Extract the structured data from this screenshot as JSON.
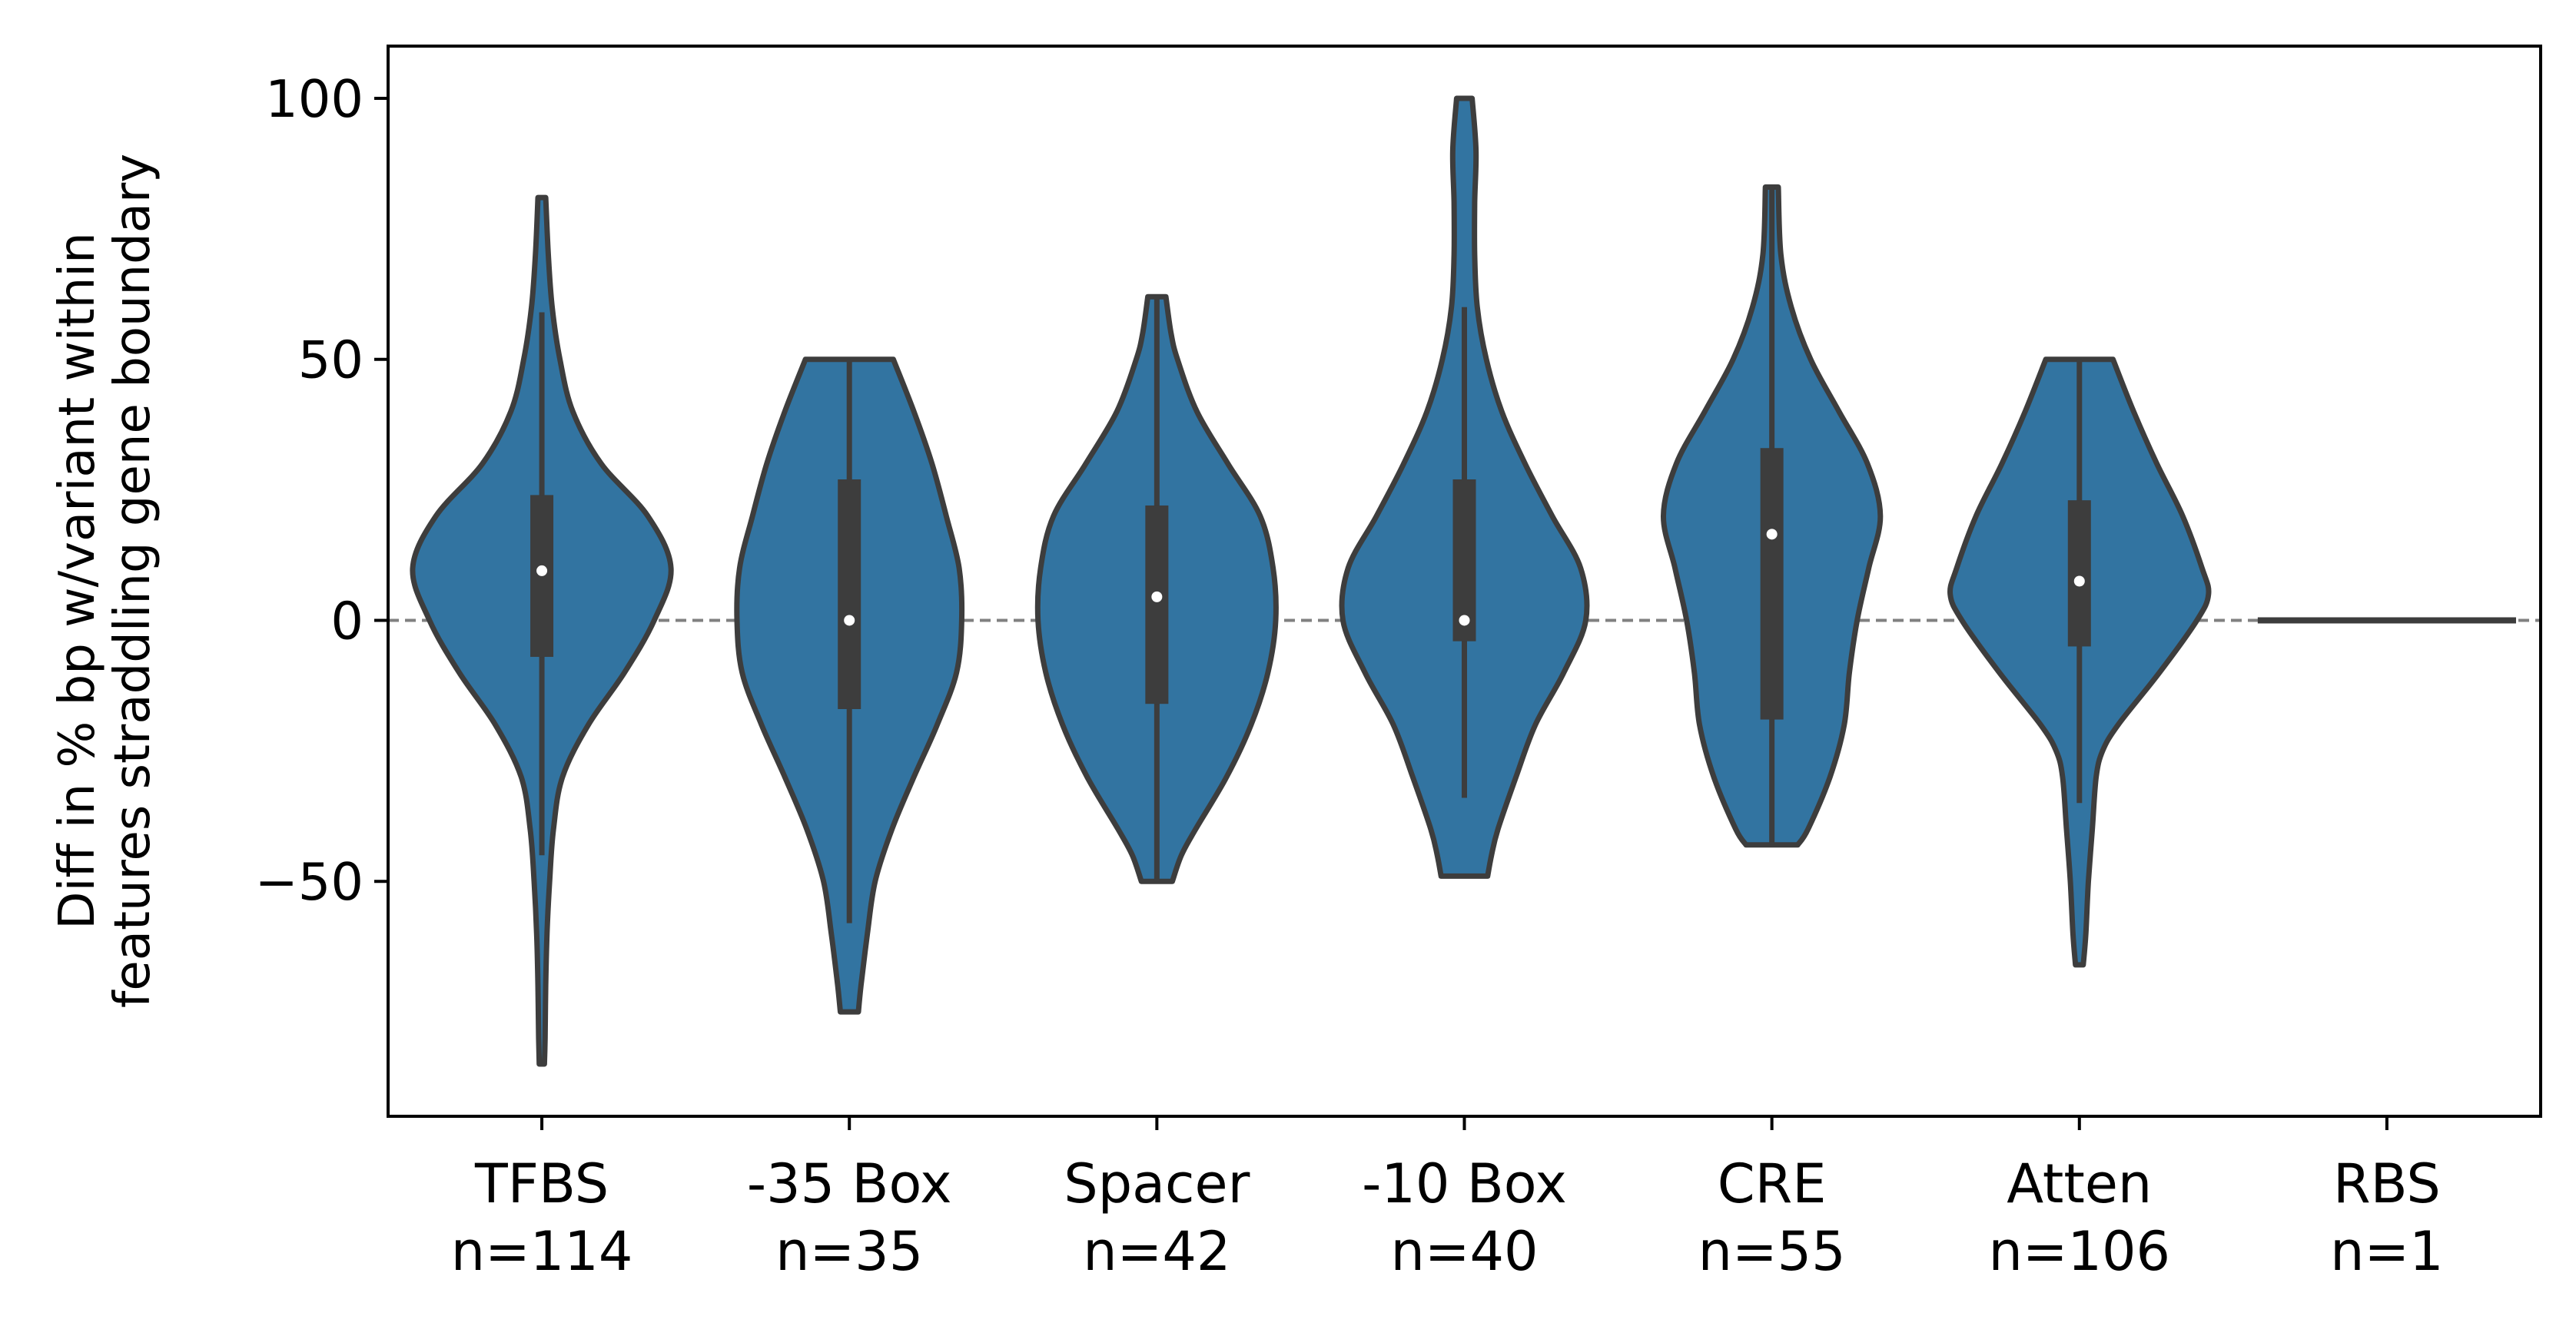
{
  "chart_data": {
    "type": "violin",
    "ylabel": [
      "Diff in % bp w/variant within",
      "features straddling gene boundary"
    ],
    "ylim": [
      -95,
      110
    ],
    "yticks": [
      -50,
      0,
      50,
      100
    ],
    "ytick_labels": [
      "−50",
      "0",
      "50",
      "100"
    ],
    "reference_line": {
      "y": 0,
      "style": "dashed",
      "color": "#808080"
    },
    "colors": {
      "violin_fill": "#3274a1",
      "outline": "#3d3d3d",
      "median_dot": "#ffffff"
    },
    "categories": [
      {
        "name": "TFBS",
        "n_label": "n=114",
        "min": -85,
        "max": 81,
        "q1": -7,
        "q3": 24,
        "median": 9.5,
        "whisker_low": -45,
        "whisker_high": 59,
        "density": [
          [
            -85,
            0.02
          ],
          [
            -80,
            0.025
          ],
          [
            -70,
            0.03
          ],
          [
            -60,
            0.04
          ],
          [
            -50,
            0.06
          ],
          [
            -40,
            0.09
          ],
          [
            -30,
            0.16
          ],
          [
            -20,
            0.36
          ],
          [
            -10,
            0.64
          ],
          [
            0,
            0.87
          ],
          [
            10,
            1.0
          ],
          [
            20,
            0.82
          ],
          [
            30,
            0.46
          ],
          [
            40,
            0.24
          ],
          [
            50,
            0.14
          ],
          [
            60,
            0.08
          ],
          [
            70,
            0.05
          ],
          [
            81,
            0.03
          ]
        ]
      },
      {
        "name": "-35 Box",
        "n_label": "n=35",
        "min": -75,
        "max": 50,
        "q1": -17,
        "q3": 27,
        "median": 0,
        "whisker_low": -58,
        "whisker_high": 50,
        "density": [
          [
            -75,
            0.07
          ],
          [
            -70,
            0.09
          ],
          [
            -60,
            0.14
          ],
          [
            -50,
            0.2
          ],
          [
            -40,
            0.33
          ],
          [
            -30,
            0.5
          ],
          [
            -20,
            0.68
          ],
          [
            -10,
            0.83
          ],
          [
            0,
            0.87
          ],
          [
            10,
            0.85
          ],
          [
            20,
            0.75
          ],
          [
            30,
            0.64
          ],
          [
            40,
            0.5
          ],
          [
            50,
            0.34
          ]
        ]
      },
      {
        "name": "Spacer",
        "n_label": "n=42",
        "min": -50,
        "max": 62,
        "q1": -16,
        "q3": 22,
        "median": 4.5,
        "whisker_low": -50,
        "whisker_high": 62,
        "density": [
          [
            -50,
            0.12
          ],
          [
            -45,
            0.19
          ],
          [
            -40,
            0.3
          ],
          [
            -30,
            0.54
          ],
          [
            -20,
            0.73
          ],
          [
            -10,
            0.86
          ],
          [
            0,
            0.92
          ],
          [
            10,
            0.9
          ],
          [
            20,
            0.8
          ],
          [
            30,
            0.55
          ],
          [
            40,
            0.31
          ],
          [
            50,
            0.16
          ],
          [
            55,
            0.11
          ],
          [
            62,
            0.07
          ]
        ]
      },
      {
        "name": "-10 Box",
        "n_label": "n=40",
        "min": -49,
        "max": 100,
        "q1": -4,
        "q3": 27,
        "median": 0,
        "whisker_low": -34,
        "whisker_high": 60,
        "density": [
          [
            -49,
            0.18
          ],
          [
            -45,
            0.21
          ],
          [
            -40,
            0.26
          ],
          [
            -30,
            0.4
          ],
          [
            -20,
            0.55
          ],
          [
            -10,
            0.77
          ],
          [
            0,
            0.94
          ],
          [
            10,
            0.9
          ],
          [
            20,
            0.68
          ],
          [
            30,
            0.47
          ],
          [
            40,
            0.29
          ],
          [
            50,
            0.17
          ],
          [
            60,
            0.1
          ],
          [
            70,
            0.08
          ],
          [
            80,
            0.08
          ],
          [
            90,
            0.09
          ],
          [
            100,
            0.06
          ]
        ]
      },
      {
        "name": "CRE",
        "n_label": "n=55",
        "min": -43,
        "max": 83,
        "q1": -19,
        "q3": 33,
        "median": 16.5,
        "whisker_low": -43,
        "whisker_high": 83,
        "density": [
          [
            -43,
            0.2
          ],
          [
            -40,
            0.28
          ],
          [
            -30,
            0.45
          ],
          [
            -20,
            0.56
          ],
          [
            -10,
            0.6
          ],
          [
            0,
            0.66
          ],
          [
            10,
            0.75
          ],
          [
            20,
            0.84
          ],
          [
            30,
            0.74
          ],
          [
            40,
            0.52
          ],
          [
            50,
            0.3
          ],
          [
            60,
            0.15
          ],
          [
            70,
            0.07
          ],
          [
            83,
            0.05
          ]
        ]
      },
      {
        "name": "Atten",
        "n_label": "n=106",
        "min": -66,
        "max": 50,
        "q1": -5,
        "q3": 23,
        "median": 7.5,
        "whisker_low": -35,
        "whisker_high": 50,
        "density": [
          [
            -66,
            0.03
          ],
          [
            -60,
            0.05
          ],
          [
            -50,
            0.07
          ],
          [
            -40,
            0.1
          ],
          [
            -30,
            0.13
          ],
          [
            -25,
            0.18
          ],
          [
            -20,
            0.3
          ],
          [
            -10,
            0.62
          ],
          [
            0,
            0.91
          ],
          [
            5,
            1.0
          ],
          [
            10,
            0.95
          ],
          [
            20,
            0.8
          ],
          [
            30,
            0.6
          ],
          [
            40,
            0.42
          ],
          [
            50,
            0.26
          ]
        ]
      },
      {
        "name": "RBS",
        "n_label": "n=1",
        "min": 0,
        "max": 0,
        "q1": 0,
        "q3": 0,
        "median": 0,
        "whisker_low": 0,
        "whisker_high": 0,
        "density": []
      }
    ]
  }
}
